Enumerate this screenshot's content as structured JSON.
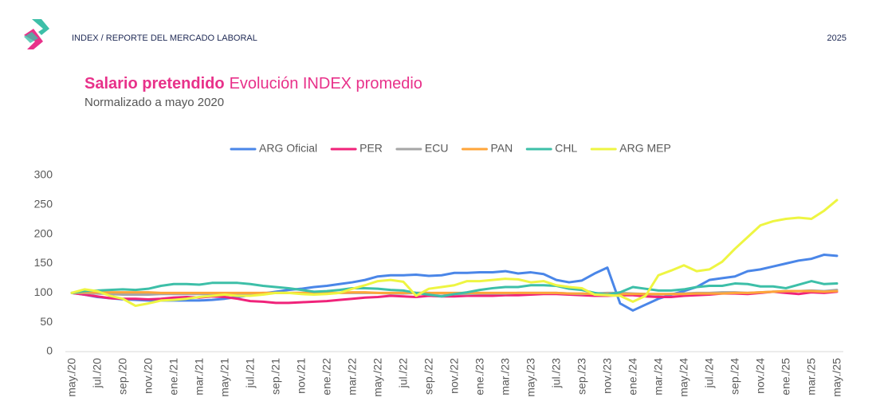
{
  "header": {
    "text": "INDEX / REPORTE DEL MERCADO LABORAL",
    "year": "2025"
  },
  "chart_data": {
    "type": "line",
    "title_bold": "Salario pretendido",
    "title": "Evolución INDEX promedio",
    "subtitle": "Normalizado a mayo 2020",
    "categories": [
      "may./20",
      null,
      "jul./20",
      null,
      "sep./20",
      null,
      "nov./20",
      null,
      "ene./21",
      null,
      "mar./21",
      null,
      "may./21",
      null,
      "jul./21",
      null,
      "sep./21",
      null,
      "nov./21",
      null,
      "ene./22",
      null,
      "mar./22",
      null,
      "may./22",
      null,
      "jul./22",
      null,
      "sep./22",
      null,
      "nov./22",
      null,
      "ene./23",
      null,
      "mar./23",
      null,
      "may./23",
      null,
      "jul./23",
      null,
      "sep./23",
      null,
      "nov./23",
      null,
      "ene./24",
      null,
      "mar./24",
      null,
      "may./24",
      null,
      "jul./24",
      null,
      "sep./24",
      null,
      "nov./24",
      null,
      "ene./25",
      null,
      "mar./25",
      null,
      "may./25"
    ],
    "series": [
      {
        "name": "ARG Oficial",
        "color": "#4a86e8",
        "values": [
          100,
          97,
          93,
          91,
          89,
          88,
          87,
          87,
          87,
          87,
          87,
          88,
          90,
          93,
          96,
          99,
          102,
          105,
          107,
          110,
          112,
          115,
          118,
          122,
          128,
          130,
          130,
          131,
          129,
          130,
          134,
          134,
          135,
          135,
          137,
          133,
          135,
          132,
          122,
          118,
          121,
          133,
          143,
          82,
          70,
          80,
          90,
          97,
          103,
          110,
          122,
          125,
          128,
          137,
          140,
          145,
          150,
          155,
          158,
          165,
          163
        ]
      },
      {
        "name": "PER",
        "color": "#f0237a",
        "values": [
          100,
          97,
          94,
          91,
          90,
          90,
          89,
          90,
          92,
          93,
          92,
          94,
          93,
          90,
          86,
          85,
          83,
          83,
          84,
          85,
          86,
          88,
          90,
          92,
          93,
          95,
          94,
          93,
          95,
          94,
          94,
          95,
          95,
          95,
          96,
          96,
          97,
          98,
          98,
          97,
          96,
          95,
          95,
          96,
          96,
          94,
          93,
          93,
          95,
          96,
          97,
          99,
          99,
          98,
          100,
          102,
          100,
          98,
          101,
          100,
          102
        ]
      },
      {
        "name": "ECU",
        "color": "#a6a6a6",
        "values": [
          100,
          100,
          99,
          98,
          97,
          97,
          97,
          98,
          98,
          98,
          98,
          98,
          99,
          99,
          99,
          100,
          100,
          100,
          100,
          99,
          99,
          100,
          100,
          100,
          100,
          99,
          99,
          100,
          100,
          99,
          98,
          98,
          99,
          99,
          99,
          100,
          100,
          100,
          100,
          99,
          98,
          99,
          100,
          100,
          99,
          98,
          97,
          98,
          99,
          100,
          100,
          101,
          101,
          100,
          101,
          102,
          103,
          103,
          104,
          103,
          105
        ]
      },
      {
        "name": "PAN",
        "color": "#ffa53a",
        "values": [
          100,
          101,
          101,
          101,
          101,
          101,
          101,
          100,
          100,
          100,
          100,
          100,
          100,
          100,
          100,
          100,
          100,
          100,
          100,
          100,
          100,
          100,
          101,
          101,
          100,
          100,
          100,
          100,
          100,
          100,
          100,
          100,
          100,
          100,
          100,
          100,
          100,
          100,
          100,
          99,
          99,
          98,
          98,
          98,
          98,
          98,
          98,
          98,
          98,
          99,
          99,
          99,
          100,
          100,
          101,
          102,
          103,
          103,
          103,
          102,
          103
        ]
      },
      {
        "name": "CHL",
        "color": "#3dbfa8",
        "values": [
          100,
          103,
          104,
          105,
          106,
          105,
          107,
          112,
          115,
          115,
          114,
          117,
          117,
          117,
          115,
          112,
          110,
          108,
          105,
          102,
          103,
          105,
          108,
          108,
          107,
          105,
          104,
          100,
          97,
          94,
          98,
          101,
          105,
          108,
          110,
          110,
          113,
          113,
          112,
          107,
          105,
          100,
          97,
          101,
          110,
          107,
          104,
          104,
          106,
          110,
          112,
          112,
          116,
          115,
          111,
          111,
          108,
          114,
          120,
          115,
          116
        ]
      },
      {
        "name": "ARG MEP",
        "color": "#eef542",
        "values": [
          100,
          106,
          103,
          95,
          90,
          78,
          82,
          87,
          88,
          90,
          93,
          95,
          97,
          95,
          95,
          97,
          100,
          100,
          98,
          97,
          98,
          100,
          107,
          113,
          120,
          122,
          119,
          95,
          107,
          110,
          113,
          120,
          120,
          122,
          124,
          123,
          118,
          120,
          113,
          110,
          108,
          97,
          96,
          95,
          85,
          95,
          130,
          138,
          147,
          137,
          140,
          153,
          175,
          195,
          215,
          222,
          226,
          228,
          226,
          240,
          258
        ]
      }
    ],
    "ylim": [
      0,
      300
    ],
    "yticks": [
      0,
      50,
      100,
      150,
      200,
      250,
      300
    ],
    "grid": false
  }
}
